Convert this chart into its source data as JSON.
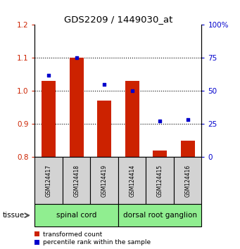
{
  "title": "GDS2209 / 1449030_at",
  "samples": [
    "GSM124417",
    "GSM124418",
    "GSM124419",
    "GSM124414",
    "GSM124415",
    "GSM124416"
  ],
  "red_values": [
    1.03,
    1.1,
    0.97,
    1.03,
    0.82,
    0.85
  ],
  "blue_values": [
    62,
    75,
    55,
    50,
    27,
    28
  ],
  "ylim_left": [
    0.8,
    1.2
  ],
  "ylim_right": [
    0,
    100
  ],
  "yticks_left": [
    0.8,
    0.9,
    1.0,
    1.1,
    1.2
  ],
  "yticks_right": [
    0,
    25,
    50,
    75,
    100
  ],
  "ytick_labels_right": [
    "0",
    "25",
    "50",
    "75",
    "100%"
  ],
  "red_color": "#CC2200",
  "blue_color": "#0000CC",
  "bar_width": 0.5,
  "tissue_label": "tissue",
  "legend_red": "transformed count",
  "legend_blue": "percentile rank within the sample",
  "group1_label": "spinal cord",
  "group2_label": "dorsal root ganglion",
  "group_color": "#90EE90",
  "label_box_color": "#D3D3D3"
}
